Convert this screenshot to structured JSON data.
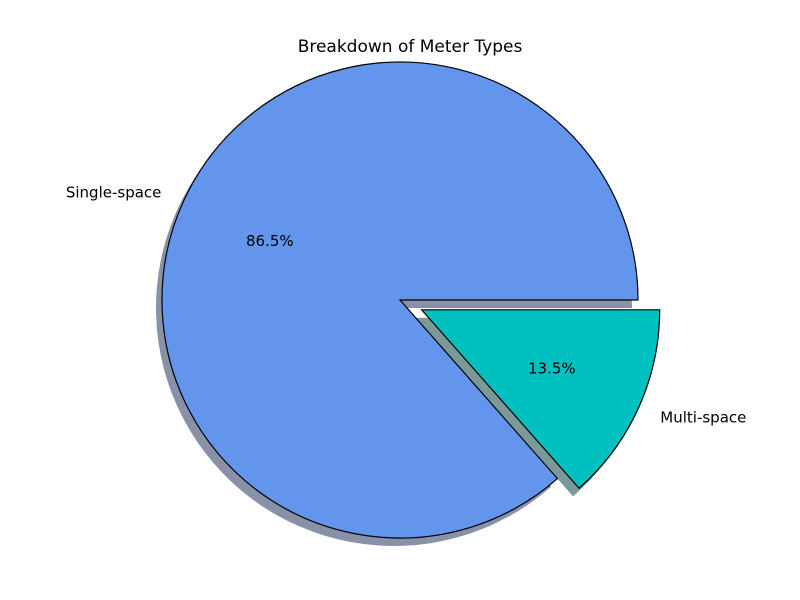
{
  "chart_data": {
    "type": "pie",
    "title": "Breakdown of Meter Types",
    "categories": [
      "Single-space",
      "Multi-space"
    ],
    "values": [
      86.5,
      13.5
    ],
    "value_labels": [
      "86.5%",
      "13.5%"
    ],
    "colors": [
      "#6495ED",
      "#00C0C0"
    ],
    "explode": [
      0,
      0.1
    ],
    "shadow": true,
    "start_angle_degrees": 0,
    "direction": "counterclockwise",
    "legend": "none"
  }
}
